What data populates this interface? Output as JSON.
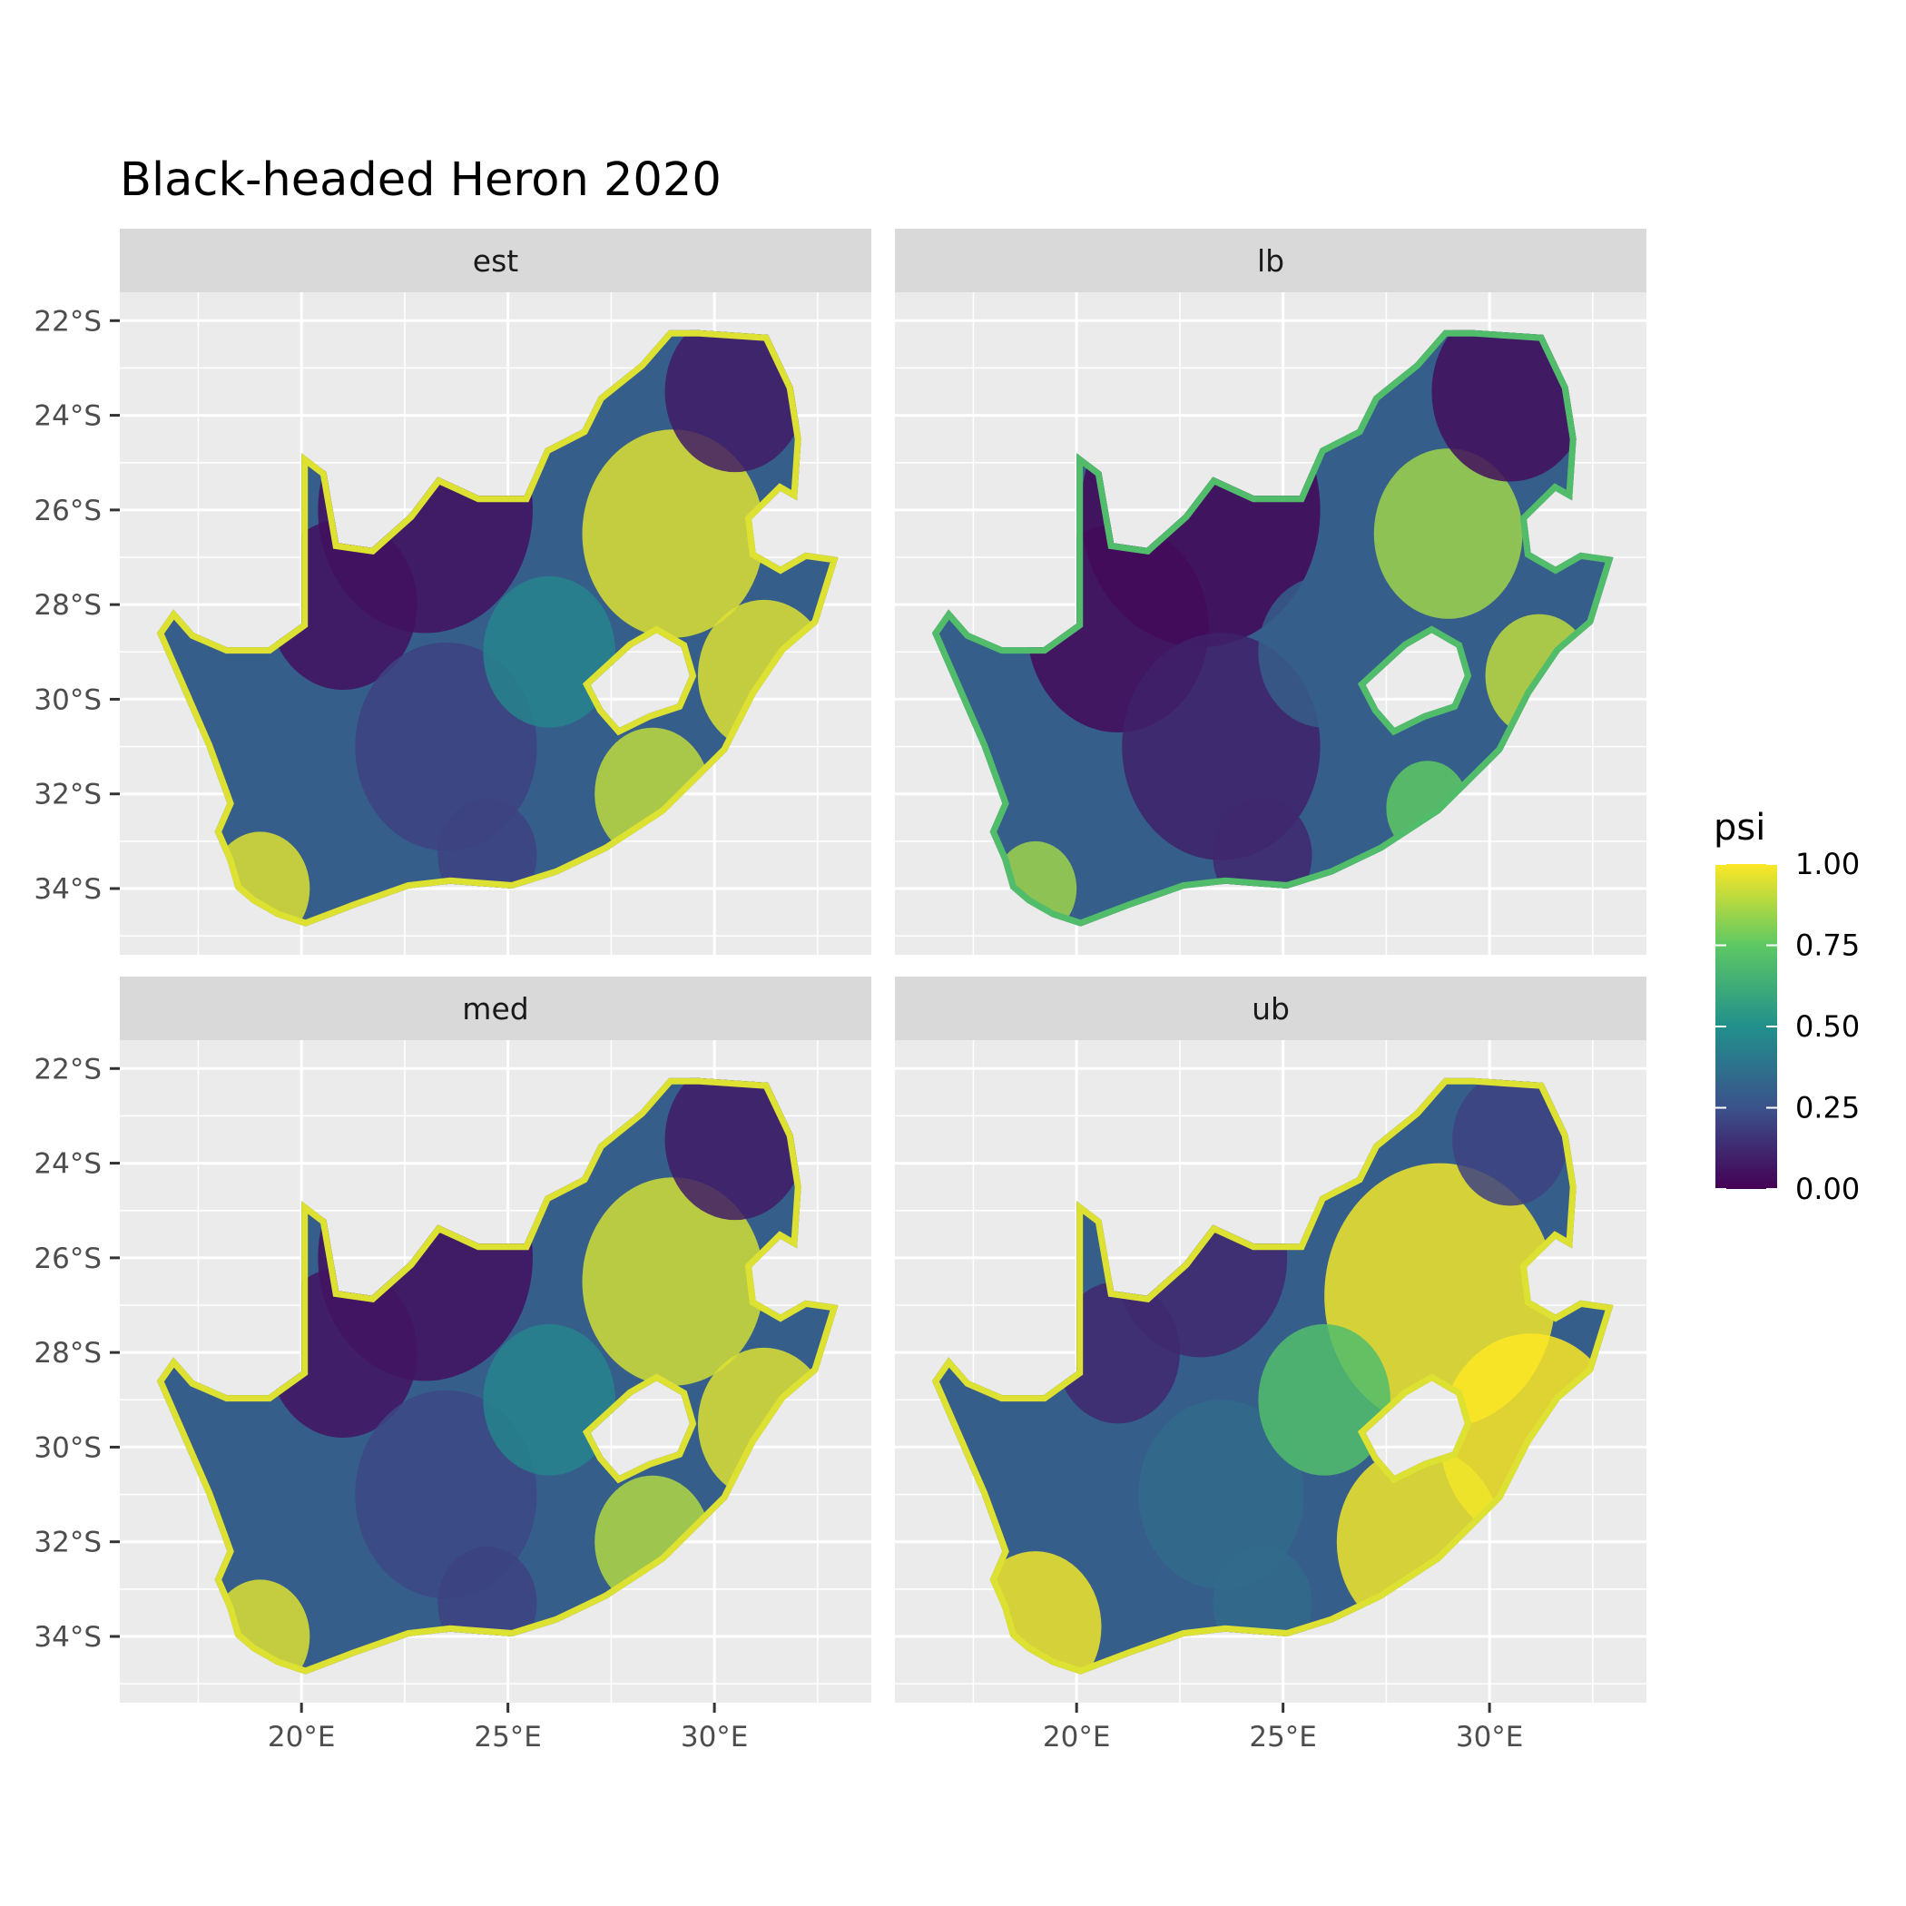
{
  "chart_data": {
    "type": "heatmap",
    "title": "Black-headed Heron 2020",
    "panels": [
      {
        "label": "est"
      },
      {
        "label": "lb"
      },
      {
        "label": "med"
      },
      {
        "label": "ub"
      }
    ],
    "x_axis": {
      "ticks": [
        20,
        25,
        30
      ],
      "tick_labels": [
        "20°E",
        "25°E",
        "30°E"
      ],
      "range": [
        15.6,
        33.8
      ]
    },
    "y_axis": {
      "ticks": [
        -22,
        -24,
        -26,
        -28,
        -30,
        -32,
        -34
      ],
      "tick_labels": [
        "22°S",
        "24°S",
        "26°S",
        "28°S",
        "30°S",
        "32°S",
        "34°S"
      ],
      "range": [
        -35.4,
        -21.4
      ]
    },
    "legend": {
      "title": "psi",
      "position": "right",
      "ticks": [
        1.0,
        0.75,
        0.5,
        0.25,
        0.0
      ],
      "tick_labels": [
        "1.00",
        "0.75",
        "0.50",
        "0.25",
        "0.00"
      ],
      "colors": [
        "#440154",
        "#3b528b",
        "#21908c",
        "#5dc863",
        "#fde725"
      ]
    },
    "grid": true,
    "background": "#ebebeb",
    "strip_color": "#d9d9d9"
  }
}
